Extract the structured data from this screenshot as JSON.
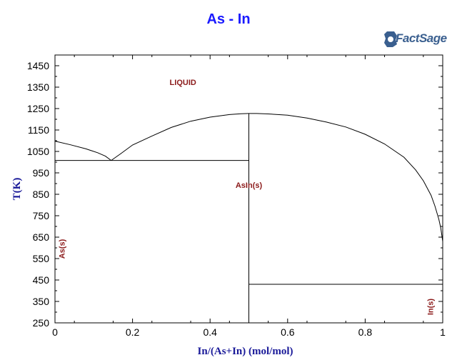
{
  "title": "As - In",
  "logo": {
    "main": "FactSage",
    "icon": "gear-logo-icon"
  },
  "chart_data": {
    "type": "line",
    "title": "As - In",
    "xlabel": "In/(As+In) (mol/mol)",
    "ylabel": "T(K)",
    "xlim": [
      0,
      1
    ],
    "ylim": [
      250,
      1500
    ],
    "xticks": [
      0,
      0.2,
      0.4,
      0.6,
      0.8,
      1
    ],
    "xtick_labels": [
      "0",
      "0.2",
      "0.4",
      "0.6",
      "0.8",
      "1"
    ],
    "yticks": [
      250,
      350,
      450,
      550,
      650,
      750,
      850,
      950,
      1050,
      1150,
      1250,
      1350,
      1450
    ],
    "ytick_labels": [
      "250",
      "350",
      "450",
      "550",
      "650",
      "750",
      "850",
      "950",
      "1050",
      "1150",
      "1250",
      "1350",
      "1450"
    ],
    "grid": false,
    "series": [
      {
        "x": [
          0,
          0.04,
          0.08,
          0.11,
          0.13,
          0.145
        ],
        "y": [
          1098,
          1081,
          1062,
          1044,
          1028,
          1008
        ]
      },
      {
        "x": [
          0.145,
          0.17,
          0.2,
          0.25,
          0.3,
          0.35,
          0.4,
          0.45,
          0.48,
          0.5,
          0.52,
          0.55,
          0.6,
          0.65,
          0.7,
          0.75,
          0.8,
          0.85,
          0.9,
          0.93,
          0.95,
          0.97,
          0.98,
          0.99,
          0.995,
          1.0
        ],
        "y": [
          1008,
          1040,
          1080,
          1122,
          1162,
          1191,
          1210,
          1222,
          1226,
          1227,
          1227,
          1225,
          1219,
          1206,
          1187,
          1164,
          1130,
          1085,
          1023,
          964,
          913,
          845,
          795,
          733,
          692,
          630
        ]
      },
      {
        "x": [
          0,
          0.5
        ],
        "y": [
          1008,
          1008
        ]
      },
      {
        "x": [
          0.5,
          0.5
        ],
        "y": [
          1227,
          250
        ]
      },
      {
        "x": [
          0.5,
          1
        ],
        "y": [
          430,
          430
        ]
      }
    ],
    "annotations": [
      {
        "text": "LIQUID",
        "x": 0.33,
        "y": 1360,
        "rotation": 0
      },
      {
        "text": "AsIn(s)",
        "x": 0.5,
        "y": 880,
        "rotation": 0
      },
      {
        "text": "As(s)",
        "x": 0.025,
        "y": 595,
        "rotation": -90
      },
      {
        "text": "In(s)",
        "x": 0.975,
        "y": 325,
        "rotation": -90
      }
    ]
  }
}
